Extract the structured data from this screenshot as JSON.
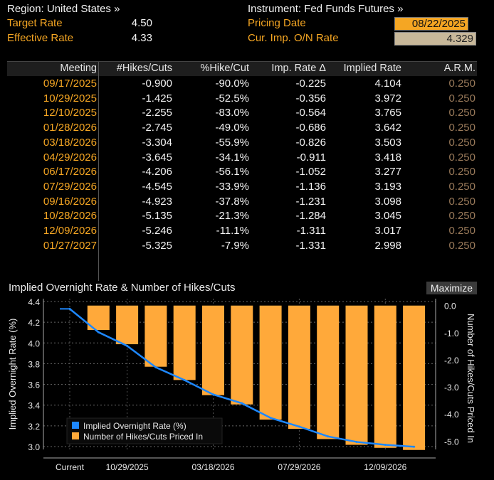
{
  "header": {
    "region_label": "Region: United States »",
    "instrument_label": "Instrument: Fed Funds Futures »",
    "target_rate_label": "Target Rate",
    "target_rate_value": "4.50",
    "effective_rate_label": "Effective Rate",
    "effective_rate_value": "4.33",
    "pricing_date_label": "Pricing Date",
    "pricing_date_value": "08/22/2025",
    "cur_imp_label": "Cur. Imp. O/N Rate",
    "cur_imp_value": "4.329"
  },
  "table": {
    "columns": [
      "Meeting",
      "#Hikes/Cuts",
      "%Hike/Cut",
      "Imp. Rate Δ",
      "Implied Rate",
      "A.R.M."
    ],
    "rows": [
      [
        "09/17/2025",
        "-0.900",
        "-90.0%",
        "-0.225",
        "4.104",
        "0.250"
      ],
      [
        "10/29/2025",
        "-1.425",
        "-52.5%",
        "-0.356",
        "3.972",
        "0.250"
      ],
      [
        "12/10/2025",
        "-2.255",
        "-83.0%",
        "-0.564",
        "3.765",
        "0.250"
      ],
      [
        "01/28/2026",
        "-2.745",
        "-49.0%",
        "-0.686",
        "3.642",
        "0.250"
      ],
      [
        "03/18/2026",
        "-3.304",
        "-55.9%",
        "-0.826",
        "3.503",
        "0.250"
      ],
      [
        "04/29/2026",
        "-3.645",
        "-34.1%",
        "-0.911",
        "3.418",
        "0.250"
      ],
      [
        "06/17/2026",
        "-4.206",
        "-56.1%",
        "-1.052",
        "3.277",
        "0.250"
      ],
      [
        "07/29/2026",
        "-4.545",
        "-33.9%",
        "-1.136",
        "3.193",
        "0.250"
      ],
      [
        "09/16/2026",
        "-4.923",
        "-37.8%",
        "-1.231",
        "3.098",
        "0.250"
      ],
      [
        "10/28/2026",
        "-5.135",
        "-21.3%",
        "-1.284",
        "3.045",
        "0.250"
      ],
      [
        "12/09/2026",
        "-5.246",
        "-11.1%",
        "-1.311",
        "3.017",
        "0.250"
      ],
      [
        "01/27/2027",
        "-5.325",
        "-7.9%",
        "-1.331",
        "2.998",
        "0.250"
      ]
    ]
  },
  "chart_panel": {
    "title": "Implied Overnight Rate & Number of Hikes/Cuts",
    "maximize_label": "Maximize"
  },
  "chart_data": {
    "type": "bar",
    "title": "Implied Overnight Rate & Number of Hikes/Cuts",
    "categories": [
      "Current",
      "09/17/2025",
      "10/29/2025",
      "12/10/2025",
      "01/28/2026",
      "03/18/2026",
      "04/29/2026",
      "06/17/2026",
      "07/29/2026",
      "09/16/2026",
      "10/28/2026",
      "12/09/2026",
      "01/27/2027"
    ],
    "x_tick_labels": [
      "Current",
      "10/29/2025",
      "03/18/2026",
      "07/29/2026",
      "12/09/2026"
    ],
    "ylabel_left": "Implied Overnight Rate (%)",
    "ylabel_right": "Number of Hikes/Cuts Priced In",
    "ylim_left": [
      3.0,
      4.4
    ],
    "yticks_left": [
      "4.4",
      "4.2",
      "4.0",
      "3.8",
      "3.6",
      "3.4",
      "3.2",
      "3.0"
    ],
    "ylim_right": [
      -5.2,
      0.15
    ],
    "yticks_right": [
      "0.0",
      "-1.0",
      "-2.0",
      "-3.0",
      "-4.0",
      "-5.0"
    ],
    "series": [
      {
        "name": "Implied Overnight Rate (%)",
        "kind": "line",
        "axis": "left",
        "color": "#1e88ff",
        "values": [
          4.329,
          4.104,
          3.972,
          3.765,
          3.642,
          3.503,
          3.418,
          3.277,
          3.193,
          3.098,
          3.045,
          3.017,
          2.998
        ]
      },
      {
        "name": "Number of Hikes/Cuts Priced In",
        "kind": "bar",
        "axis": "right",
        "color": "#ffa93a",
        "values": [
          null,
          -0.9,
          -1.425,
          -2.255,
          -2.745,
          -3.304,
          -3.645,
          -4.206,
          -4.545,
          -4.923,
          -5.135,
          -5.246,
          -5.325
        ]
      }
    ],
    "legend_position": "bottom-left",
    "grid": true
  }
}
